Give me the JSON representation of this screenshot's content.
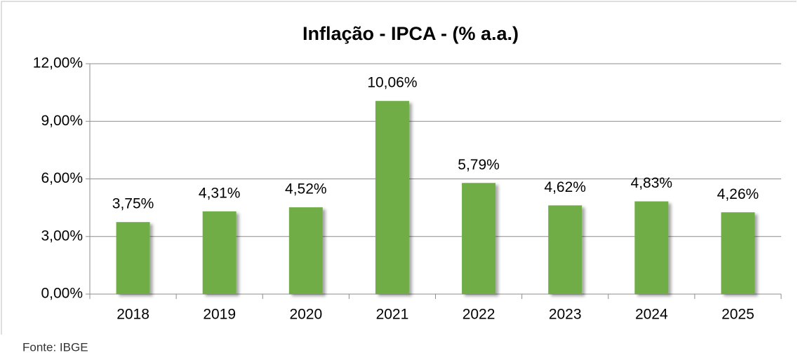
{
  "chart_data": {
    "type": "bar",
    "title": "Inflação - IPCA - (% a.a.)",
    "categories": [
      "2018",
      "2019",
      "2020",
      "2021",
      "2022",
      "2023",
      "2024",
      "2025"
    ],
    "values": [
      3.75,
      4.31,
      4.52,
      10.06,
      5.79,
      4.62,
      4.83,
      4.26
    ],
    "value_labels": [
      "3,75%",
      "4,31%",
      "4,52%",
      "10,06%",
      "5,79%",
      "4,62%",
      "4,83%",
      "4,26%"
    ],
    "color": "#70ad47",
    "ylim": [
      0,
      12
    ],
    "yticks": [
      {
        "value": 0,
        "label": "0,00%"
      },
      {
        "value": 3,
        "label": "3,00%"
      },
      {
        "value": 6,
        "label": "6,00%"
      },
      {
        "value": 9,
        "label": "9,00%"
      },
      {
        "value": 12,
        "label": "12,00%"
      }
    ],
    "grid": true,
    "source": "Fonte: IBGE"
  }
}
